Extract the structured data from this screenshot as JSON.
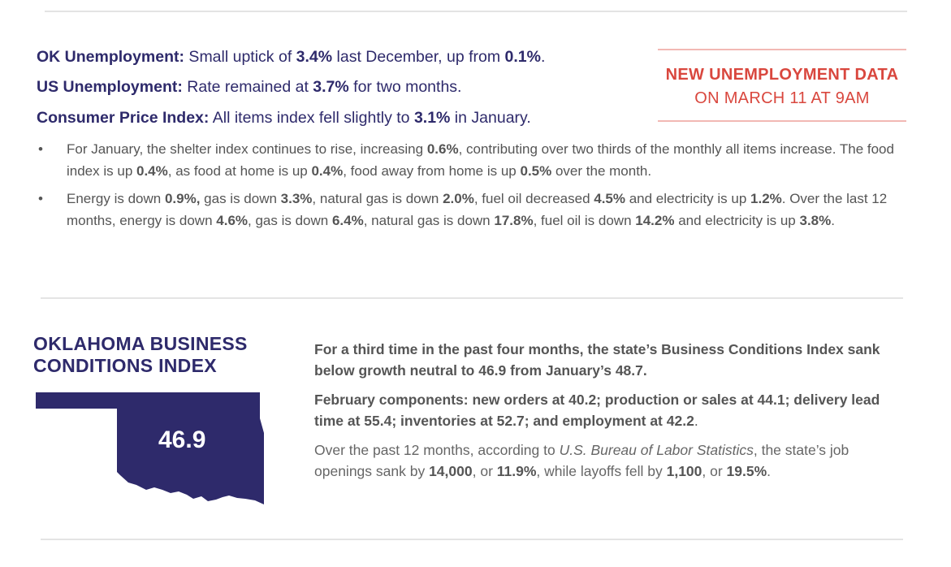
{
  "stats": {
    "ok": {
      "label": "OK Unemployment:",
      "t1": " Small uptick of ",
      "v1": "3.4%",
      "t2": " last December, up from ",
      "v2": "0.1%",
      "t3": "."
    },
    "us": {
      "label": "US Unemployment:",
      "t1": " Rate remained at ",
      "v1": "3.7%",
      "t2": " for two months."
    },
    "cpi": {
      "label": "Consumer Price Index:",
      "t1": " All items index fell slightly to ",
      "v1": "3.1%",
      "t2": " in January."
    }
  },
  "bullets": {
    "b1": {
      "t1": "For January, the shelter index continues to rise, increasing ",
      "v1": "0.6%",
      "t2": ", contributing over two thirds of the monthly all items increase. The food index is up ",
      "v2": "0.4%",
      "t3": ", as food at home is up ",
      "v3": "0.4%",
      "t4": ", food away from home is up ",
      "v4": "0.5%",
      "t5": " over the month."
    },
    "b2": {
      "t1": "Energy is down ",
      "v1": "0.9%,",
      "t2": " gas is down ",
      "v2": "3.3%",
      "t3": ", natural gas is down ",
      "v3": "2.0%",
      "t4": ", fuel oil decreased ",
      "v4": "4.5%",
      "t5": " and electricity is up ",
      "v5": "1.2%",
      "t6": ". Over the last 12 months, energy is down ",
      "v6": "4.6%",
      "t7": ", gas is down ",
      "v7": "6.4%",
      "t8": ", natural gas is down ",
      "v8": "17.8%",
      "t9": ", fuel oil is down ",
      "v9": "14.2%",
      "t10": " and electricity is up ",
      "v10": "3.8%",
      "t11": "."
    }
  },
  "callout": {
    "line1": "NEW UNEMPLOYMENT DATA",
    "line2": "ON MARCH 11 AT 9AM"
  },
  "bci": {
    "title_line1": "OKLAHOMA BUSINESS",
    "title_line2": "CONDITIONS INDEX",
    "map_value": "46.9",
    "map_color": "#2e2a6b"
  },
  "paragraphs": {
    "p1": "For a third time in the past four months, the state’s Business Conditions Index sank below growth neutral to 46.9 from January’s 48.7.",
    "p2": "February components: new orders at 40.2; production or sales at 44.1; delivery lead time at 55.4; inventories at 52.7; and employment at 42.2",
    "p2_end": ".",
    "p3": {
      "t1": "Over the past 12 months, according to ",
      "source": "U.S. Bureau of Labor Statistics",
      "t2": ", the state’s job openings sank by ",
      "v1": "14,000",
      "t3": ", or ",
      "v2": "11.9%",
      "t4": ", while layoffs fell by ",
      "v3": "1,100",
      "t5": ", or ",
      "v4": "19.5%",
      "t6": "."
    }
  }
}
